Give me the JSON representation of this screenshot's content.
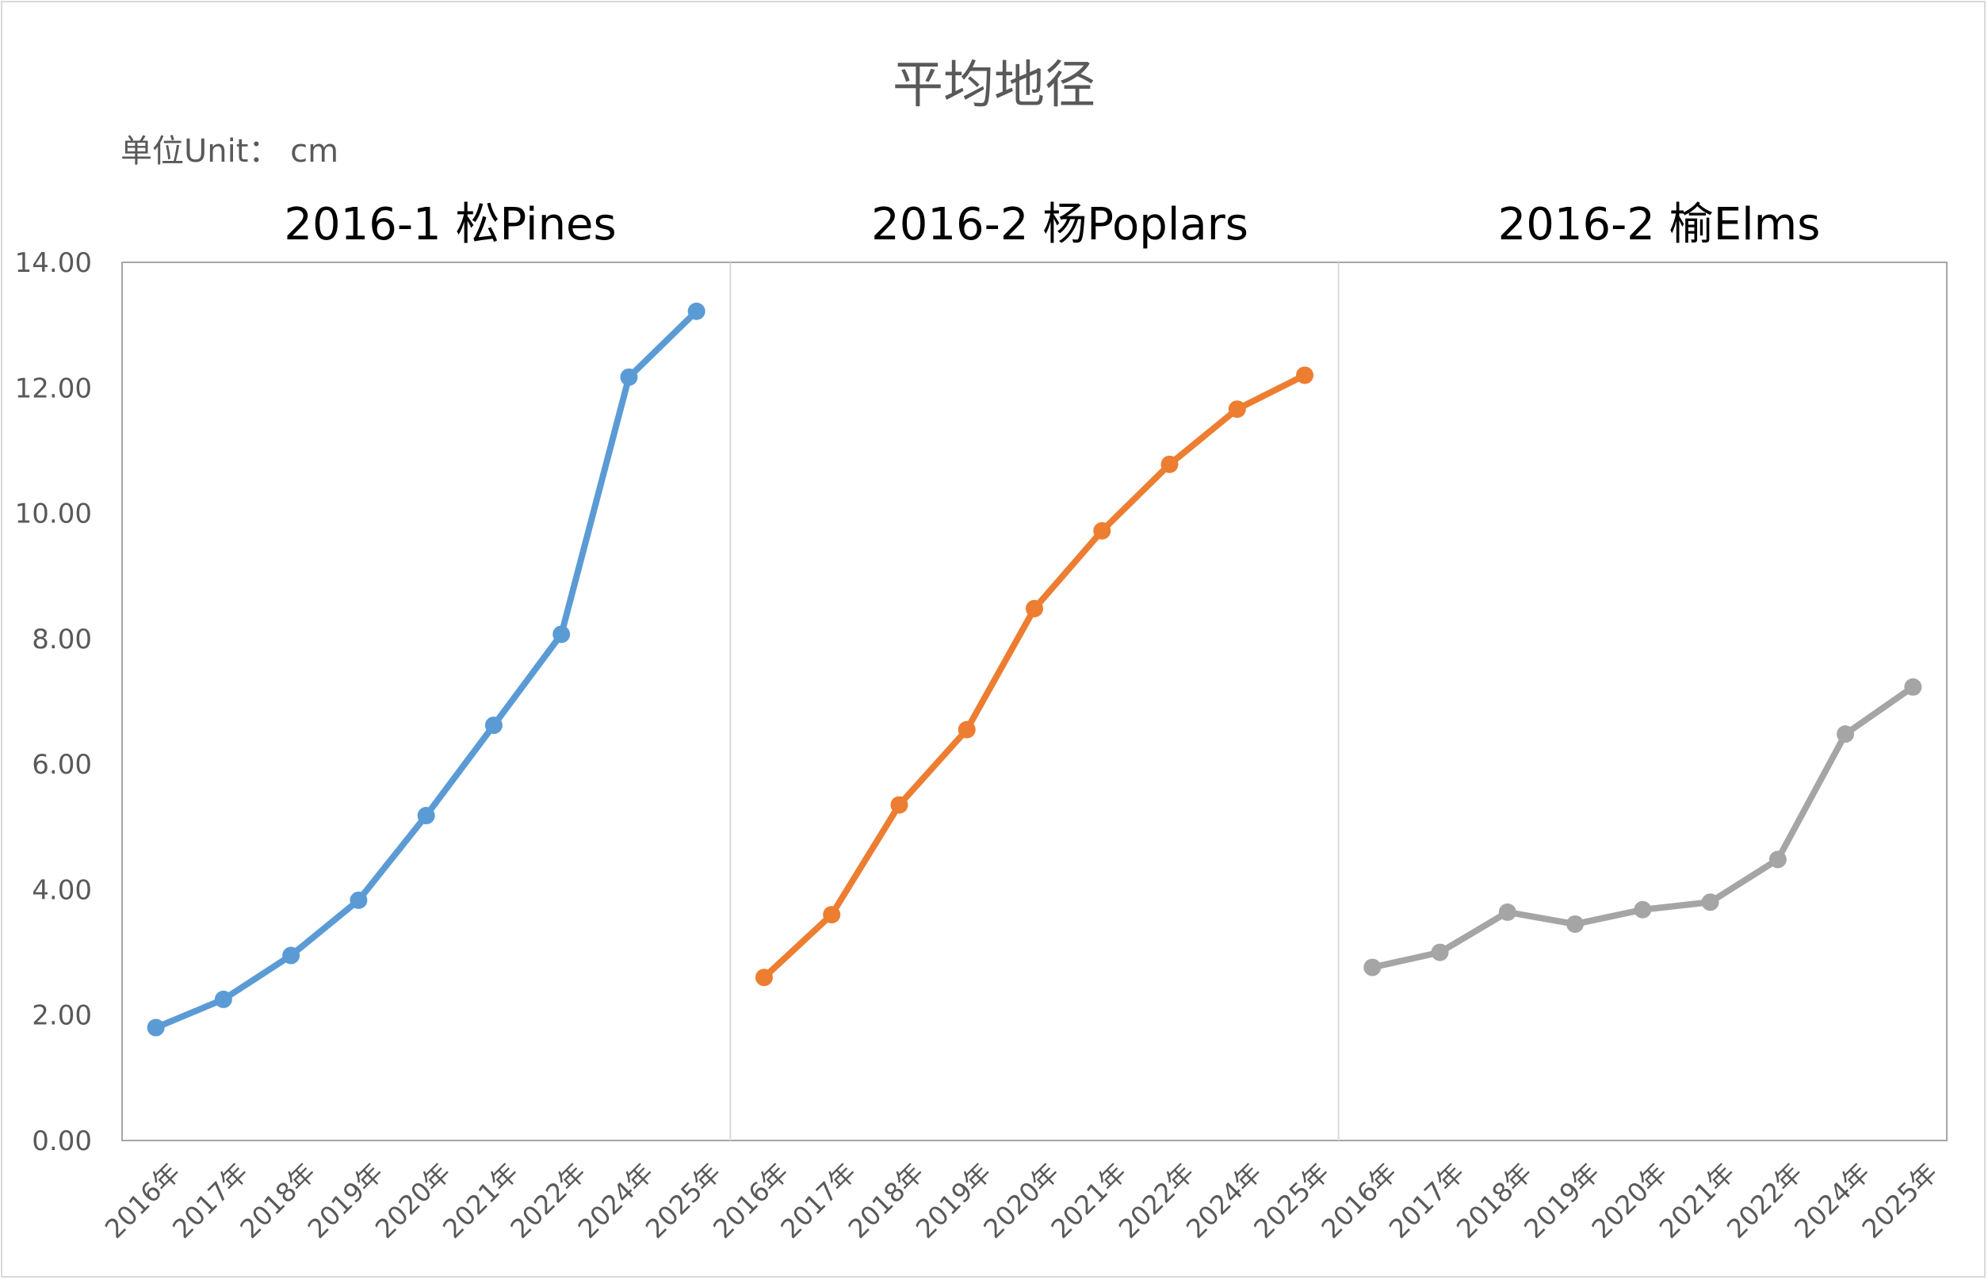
{
  "title": "平均地径",
  "unit_label": "单位Unit：  cm",
  "chart_data": {
    "type": "line",
    "ylim": [
      0,
      14
    ],
    "y_ticks": [
      "0.00",
      "2.00",
      "4.00",
      "6.00",
      "8.00",
      "10.00",
      "12.00",
      "14.00"
    ],
    "categories": [
      "2016年",
      "2017年",
      "2018年",
      "2019年",
      "2020年",
      "2021年",
      "2022年",
      "2024年",
      "2025年"
    ],
    "grid": false,
    "panels": [
      {
        "name": "2016-1 松Pines",
        "color": "#5b9bd5",
        "values": [
          1.8,
          2.25,
          2.95,
          3.83,
          5.18,
          6.62,
          8.07,
          12.17,
          13.22
        ]
      },
      {
        "name": "2016-2 杨Poplars",
        "color": "#ed7d31",
        "values": [
          2.6,
          3.6,
          5.35,
          6.55,
          8.48,
          9.72,
          10.78,
          11.66,
          12.2
        ]
      },
      {
        "name": "2016-2 榆Elms",
        "color": "#a5a5a5",
        "values": [
          2.76,
          3.0,
          3.64,
          3.45,
          3.68,
          3.8,
          4.48,
          6.48,
          7.23
        ]
      }
    ]
  }
}
